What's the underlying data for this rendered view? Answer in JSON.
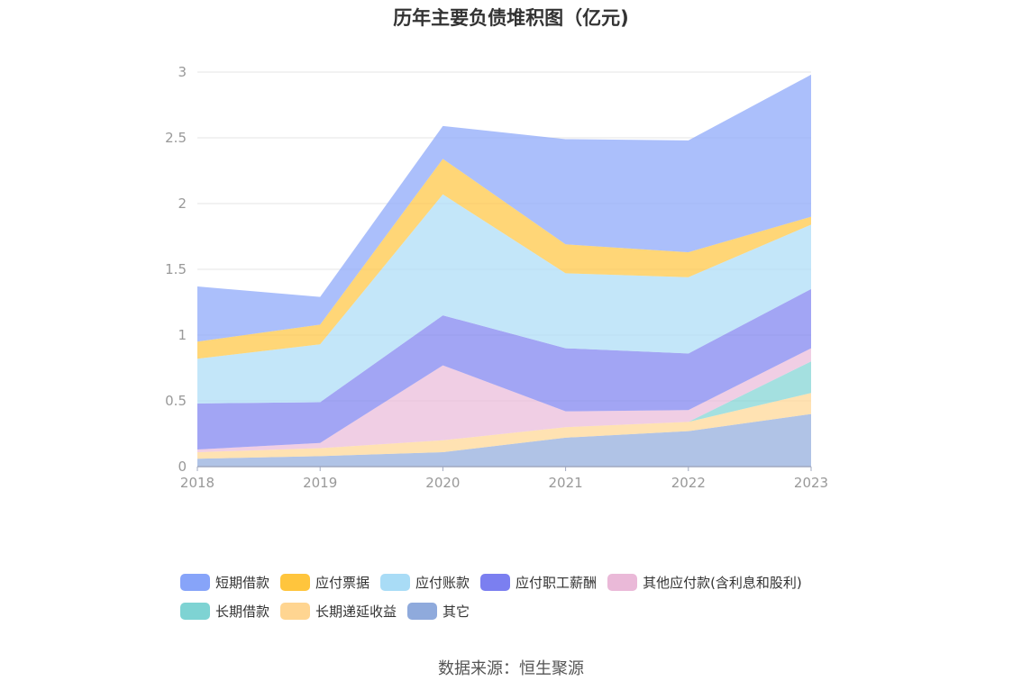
{
  "chart_data": {
    "type": "area",
    "stacked": true,
    "title": "历年主要负债堆积图（亿元)",
    "x": [
      "2018",
      "2019",
      "2020",
      "2021",
      "2022",
      "2023"
    ],
    "yticks": [
      "0",
      "0.5",
      "1",
      "1.5",
      "2",
      "2.5",
      "3"
    ],
    "ylim": [
      0,
      3
    ],
    "grid": true,
    "legend_position": "bottom",
    "series": [
      {
        "name": "其它",
        "color": "#8faadc",
        "values": [
          0.06,
          0.08,
          0.11,
          0.22,
          0.27,
          0.4
        ]
      },
      {
        "name": "长期递延收益",
        "color": "#ffd591",
        "values": [
          0.05,
          0.06,
          0.09,
          0.08,
          0.07,
          0.16
        ]
      },
      {
        "name": "长期借款",
        "color": "#7ed3d3",
        "values": [
          0.0,
          0.0,
          0.0,
          0.0,
          0.0,
          0.24
        ]
      },
      {
        "name": "其他应付款(含利息和股利)",
        "color": "#eab9d8",
        "values": [
          0.02,
          0.04,
          0.57,
          0.12,
          0.09,
          0.1
        ]
      },
      {
        "name": "应付职工薪酬",
        "color": "#7b7ff0",
        "values": [
          0.35,
          0.31,
          0.38,
          0.48,
          0.43,
          0.45
        ]
      },
      {
        "name": "应付账款",
        "color": "#a9dcf6",
        "values": [
          0.34,
          0.44,
          0.92,
          0.57,
          0.58,
          0.49
        ]
      },
      {
        "name": "应付票据",
        "color": "#ffc53d",
        "values": [
          0.13,
          0.15,
          0.27,
          0.22,
          0.19,
          0.06
        ]
      },
      {
        "name": "短期借款",
        "color": "#87a4f9",
        "values": [
          0.42,
          0.21,
          0.25,
          0.8,
          0.85,
          1.08
        ]
      }
    ],
    "legend_rows": [
      [
        "短期借款",
        "应付票据",
        "应付账款",
        "应付职工薪酬",
        "其他应付款(含利息和股利)"
      ],
      [
        "长期借款",
        "长期递延收益",
        "其它"
      ]
    ]
  },
  "source": "数据来源：恒生聚源"
}
